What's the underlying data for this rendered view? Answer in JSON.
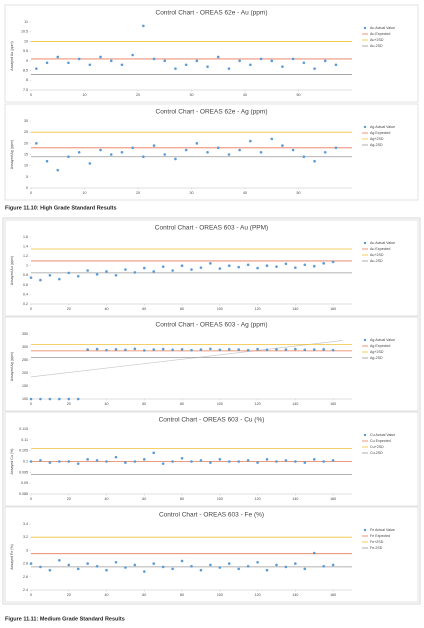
{
  "chart_data": [
    {
      "type": "scatter",
      "title": "Control Chart - OREAS 62e - Au (ppm)",
      "ylabel": "Assayed Au (ppm)",
      "x": [
        1,
        3,
        5,
        7,
        9,
        11,
        13,
        15,
        17,
        19,
        21,
        23,
        25,
        27,
        29,
        31,
        33,
        35,
        37,
        39,
        41,
        43,
        45,
        47,
        49,
        51,
        53,
        55,
        57
      ],
      "series": [
        {
          "name": "Au Actual Value",
          "color": "#5b9bd5",
          "values": [
            8.6,
            8.9,
            9.2,
            8.9,
            9.1,
            8.8,
            9.2,
            9.0,
            8.8,
            9.3,
            10.8,
            9.1,
            9.0,
            8.6,
            8.8,
            9.0,
            8.7,
            9.2,
            8.6,
            9.0,
            8.8,
            9.1,
            9.0,
            8.7,
            9.1,
            8.9,
            8.6,
            9.0,
            8.8
          ]
        }
      ],
      "reference_lines": [
        {
          "name": "Au Expected",
          "color": "#e8795a",
          "value": 9.1
        },
        {
          "name": "Au+2SD",
          "color": "#f2c037",
          "value": 10
        },
        {
          "name": "Au-2SD",
          "color": "#9a9a9a",
          "value": 8.3
        }
      ],
      "xlim": [
        0,
        60
      ],
      "xticks": [
        0,
        10,
        20,
        30,
        40,
        50
      ],
      "ylim": [
        7.5,
        11
      ],
      "yticks": [
        7.5,
        8,
        8.5,
        9,
        9.5,
        10,
        10.5,
        11
      ]
    },
    {
      "type": "scatter",
      "title": "Control Chart - OREAS 62e - Ag (ppm)",
      "ylabel": "Assayed Ag (ppm)",
      "x": [
        1,
        3,
        5,
        7,
        9,
        11,
        13,
        15,
        17,
        19,
        21,
        23,
        25,
        27,
        29,
        31,
        33,
        35,
        37,
        39,
        41,
        43,
        45,
        47,
        49,
        51,
        53,
        55,
        57
      ],
      "series": [
        {
          "name": "Ag Actual Value",
          "color": "#5b9bd5",
          "values": [
            20,
            12,
            8,
            14,
            16,
            11,
            17,
            15,
            16,
            18,
            14,
            19,
            15,
            13,
            17,
            20,
            16,
            18,
            15,
            17,
            21,
            16,
            22,
            19,
            17,
            14,
            12,
            16,
            18
          ]
        }
      ],
      "reference_lines": [
        {
          "name": "Ag Expected",
          "color": "#e8795a",
          "value": 18
        },
        {
          "name": "Ag+2SD",
          "color": "#f2c037",
          "value": 25
        },
        {
          "name": "Ag-2SD",
          "color": "#9a9a9a",
          "value": 14
        }
      ],
      "xlim": [
        0,
        60
      ],
      "xticks": [
        0,
        10,
        20,
        30,
        40,
        50
      ],
      "ylim": [
        0,
        30
      ],
      "yticks": [
        0,
        5,
        10,
        15,
        20,
        25,
        30
      ]
    },
    {
      "type": "scatter",
      "title": "Control Chart - OREAS 603 - Au (PPM)",
      "ylabel": "Assayed Au (ppm)",
      "x": [
        0,
        5,
        10,
        15,
        20,
        25,
        30,
        35,
        40,
        45,
        50,
        55,
        60,
        65,
        70,
        75,
        80,
        85,
        90,
        95,
        100,
        105,
        110,
        115,
        120,
        125,
        130,
        135,
        140,
        145,
        150,
        155,
        160
      ],
      "series": [
        {
          "name": "Au Actual Value",
          "color": "#5b9bd5",
          "values": [
            0.75,
            0.7,
            0.8,
            0.72,
            0.85,
            0.78,
            0.9,
            0.82,
            0.88,
            0.8,
            0.92,
            0.86,
            0.95,
            0.88,
            0.98,
            0.9,
            1.0,
            0.92,
            0.96,
            1.05,
            0.94,
            1.0,
            0.97,
            1.02,
            0.95,
            1.0,
            0.98,
            1.04,
            0.96,
            1.02,
            0.99,
            1.05,
            1.08
          ]
        }
      ],
      "reference_lines": [
        {
          "name": "Au Expected",
          "color": "#e8795a",
          "value": 1.1
        },
        {
          "name": "Au+2SD",
          "color": "#f2c037",
          "value": 1.35
        },
        {
          "name": "Au-2SD",
          "color": "#9a9a9a",
          "value": 0.85
        }
      ],
      "xlim": [
        0,
        170
      ],
      "xticks": [
        0,
        20,
        40,
        60,
        80,
        100,
        120,
        140,
        160
      ],
      "ylim": [
        0.2,
        1.6
      ],
      "yticks": [
        0.2,
        0.4,
        0.6,
        0.8,
        1,
        1.2,
        1.4,
        1.6
      ]
    },
    {
      "type": "scatter",
      "title": "Control Chart - OREAS 603 - Ag (ppm)",
      "ylabel": "Assayed Ag (ppm)",
      "x": [
        0,
        5,
        10,
        15,
        20,
        25,
        30,
        35,
        40,
        45,
        50,
        55,
        60,
        65,
        70,
        75,
        80,
        85,
        90,
        95,
        100,
        105,
        110,
        115,
        120,
        125,
        130,
        135,
        140,
        145,
        150,
        155,
        160
      ],
      "series": [
        {
          "name": "Ag Actual Value",
          "color": "#5b9bd5",
          "values": [
            100,
            100,
            100,
            100,
            100,
            100,
            290,
            292,
            288,
            291,
            289,
            293,
            287,
            290,
            292,
            289,
            291,
            288,
            290,
            293,
            289,
            291,
            290,
            288,
            292,
            289,
            291,
            290,
            292,
            289,
            290,
            291,
            288
          ]
        }
      ],
      "reference_lines": [
        {
          "name": "Ag Expected",
          "color": "#e8795a",
          "value": 285
        },
        {
          "name": "Ag+2SD",
          "color": "#f2c037",
          "value": 310
        },
        {
          "name": "Ag-2SD",
          "color": "#9a9a9a",
          "value": 260
        }
      ],
      "trendline": {
        "color": "#c8c8c8",
        "x": [
          0,
          165
        ],
        "values": [
          185,
          325
        ]
      },
      "xlim": [
        0,
        170
      ],
      "xticks": [
        0,
        20,
        40,
        60,
        80,
        100,
        120,
        140,
        160
      ],
      "ylim": [
        100,
        350
      ],
      "yticks": [
        100,
        150,
        200,
        250,
        300,
        350
      ]
    },
    {
      "type": "scatter",
      "title": "Control Chart - OREAS 603 - Cu (%)",
      "ylabel": "Assayed Cu (%)",
      "x": [
        0,
        5,
        10,
        15,
        20,
        25,
        30,
        35,
        40,
        45,
        50,
        55,
        60,
        65,
        70,
        75,
        80,
        85,
        90,
        95,
        100,
        105,
        110,
        115,
        120,
        125,
        130,
        135,
        140,
        145,
        150,
        155,
        160
      ],
      "series": [
        {
          "name": "Cu Actual Value",
          "color": "#5b9bd5",
          "values": [
            0.1,
            0.1005,
            0.0995,
            0.1,
            0.1,
            0.099,
            0.101,
            0.1005,
            0.1,
            0.102,
            0.0995,
            0.1,
            0.101,
            0.104,
            0.099,
            0.1,
            0.1015,
            0.1,
            0.1005,
            0.0995,
            0.101,
            0.1,
            0.1,
            0.1005,
            0.0995,
            0.101,
            0.1,
            0.1005,
            0.1,
            0.0995,
            0.101,
            0.1,
            0.1005
          ]
        }
      ],
      "reference_lines": [
        {
          "name": "Cu Expected",
          "color": "#e8795a",
          "value": 0.1
        },
        {
          "name": "Cu+2SD",
          "color": "#f2c037",
          "value": 0.106
        },
        {
          "name": "Cu-2SD",
          "color": "#9a9a9a",
          "value": 0.094
        }
      ],
      "xlim": [
        0,
        170
      ],
      "xticks": [
        0,
        20,
        40,
        60,
        80,
        100,
        120,
        140,
        160
      ],
      "ylim": [
        0.085,
        0.115
      ],
      "yticks": [
        0.085,
        0.09,
        0.095,
        0.1,
        0.105,
        0.11,
        0.115
      ]
    },
    {
      "type": "scatter",
      "title": "Control Chart - OREAS 603 - Fe (%)",
      "ylabel": "Assayed Fe (%)",
      "x": [
        0,
        5,
        10,
        15,
        20,
        25,
        30,
        35,
        40,
        45,
        50,
        55,
        60,
        65,
        70,
        75,
        80,
        85,
        90,
        95,
        100,
        105,
        110,
        115,
        120,
        125,
        130,
        135,
        140,
        145,
        150,
        155,
        160
      ],
      "series": [
        {
          "name": "Fe Actual Value",
          "color": "#5b9bd5",
          "values": [
            2.8,
            2.75,
            2.7,
            2.85,
            2.78,
            2.72,
            2.8,
            2.76,
            2.7,
            2.82,
            2.74,
            2.78,
            2.68,
            2.8,
            2.75,
            2.72,
            2.84,
            2.76,
            2.7,
            2.78,
            2.74,
            2.8,
            2.72,
            2.76,
            2.82,
            2.7,
            2.78,
            2.75,
            2.8,
            2.72,
            2.96,
            2.76,
            2.78
          ]
        }
      ],
      "reference_lines": [
        {
          "name": "Fe Expected",
          "color": "#e8795a",
          "value": 2.95
        },
        {
          "name": "Fe+2SD",
          "color": "#f2c037",
          "value": 3.2
        },
        {
          "name": "Fe-2SD",
          "color": "#9a9a9a",
          "value": 2.75
        }
      ],
      "xlim": [
        0,
        170
      ],
      "xticks": [
        0,
        20,
        40,
        60,
        80,
        100,
        120,
        140,
        160
      ],
      "ylim": [
        2.4,
        3.4
      ],
      "yticks": [
        2.4,
        2.6,
        2.8,
        3,
        3.2,
        3.4
      ]
    }
  ],
  "captions": [
    "Figure 11.10: High Grade Standard Results",
    "Figure 11.11: Medium Grade Standard Results"
  ]
}
